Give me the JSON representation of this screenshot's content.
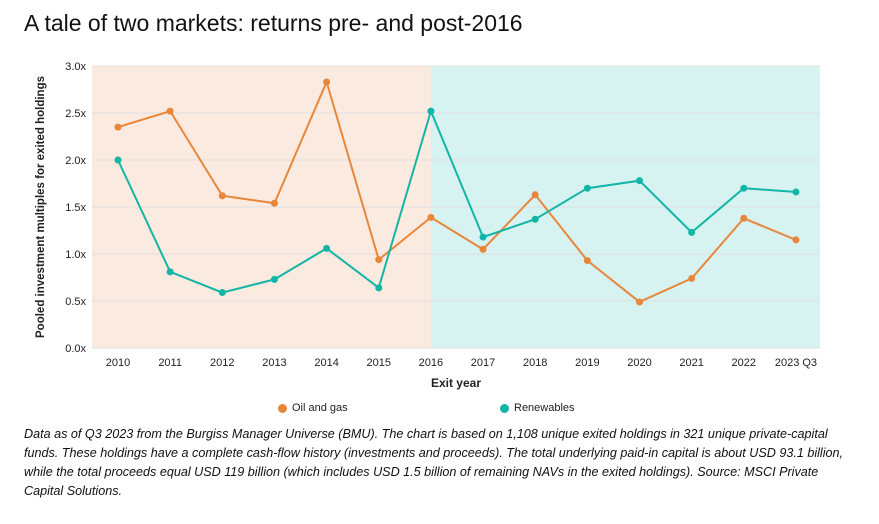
{
  "chart_data": {
    "type": "line",
    "title": "A tale of two markets: returns pre- and post-2016",
    "xlabel": "Exit year",
    "ylabel": "Pooled investment multiples for exited holdings",
    "categories": [
      "2010",
      "2011",
      "2012",
      "2013",
      "2014",
      "2015",
      "2016",
      "2017",
      "2018",
      "2019",
      "2020",
      "2021",
      "2022",
      "2023 Q3"
    ],
    "yticks": [
      "0.0x",
      "0.5x",
      "1.0x",
      "1.5x",
      "2.0x",
      "2.5x",
      "3.0x"
    ],
    "ylim": [
      0,
      3
    ],
    "grid": true,
    "legend_position": "bottom",
    "shaded_regions": [
      {
        "from": "2010",
        "to": "2016",
        "color": "#fbeadf"
      },
      {
        "from": "2016",
        "to": "2023 Q3",
        "color": "#d6f3f1"
      }
    ],
    "series": [
      {
        "name": "Oil and gas",
        "color": "#e8873a",
        "values": [
          2.35,
          2.52,
          1.62,
          1.54,
          2.83,
          0.94,
          1.39,
          1.05,
          1.63,
          0.93,
          0.49,
          0.74,
          1.38,
          1.15
        ]
      },
      {
        "name": "Renewables",
        "color": "#13b5a6",
        "values": [
          2.0,
          0.81,
          0.59,
          0.73,
          1.06,
          0.64,
          2.52,
          1.18,
          1.37,
          1.7,
          1.78,
          1.23,
          1.7,
          1.66
        ]
      }
    ]
  },
  "note": "Data as of Q3 2023 from the Burgiss Manager Universe (BMU). The chart is based on 1,108 unique exited holdings in 321 unique private-capital funds. These holdings have a complete cash-flow history (investments and proceeds). The total underlying paid-in capital is about USD 93.1 billion, while the total proceeds equal USD 119 billion (which includes USD 1.5 billion of remaining NAVs in the exited holdings). Source: MSCI Private Capital Solutions."
}
